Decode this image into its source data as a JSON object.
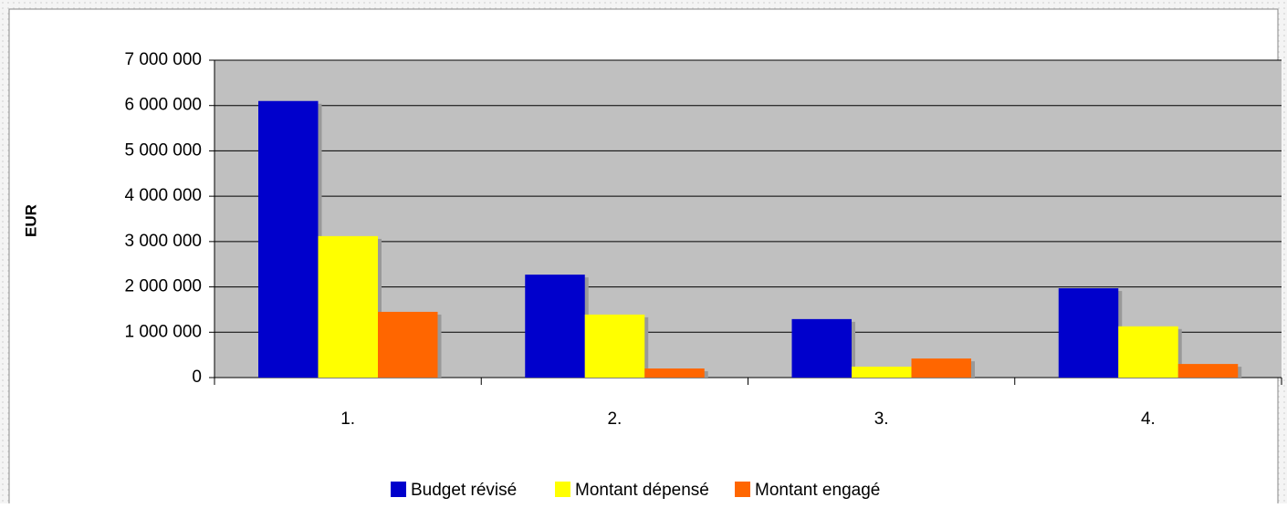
{
  "chart_data": {
    "type": "bar",
    "y_label": "EUR",
    "categories": [
      "1.",
      "2.",
      "3.",
      "4."
    ],
    "series": [
      {
        "name": "Budget révisé",
        "color": "#0000cc",
        "values": [
          6100000,
          2270000,
          1290000,
          1970000
        ]
      },
      {
        "name": "Montant dépensé",
        "color": "#ffff00",
        "values": [
          3120000,
          1390000,
          240000,
          1130000
        ]
      },
      {
        "name": "Montant engagé",
        "color": "#ff6600",
        "values": [
          1450000,
          200000,
          420000,
          300000
        ]
      }
    ],
    "ylim": [
      0,
      7000000
    ],
    "yticks": [
      0,
      {
        "value": 1000000,
        "label": "1 000 000"
      },
      {
        "value": 2000000,
        "label": "2 000 000"
      },
      {
        "value": 3000000,
        "label": "3 000 000"
      },
      {
        "value": 4000000,
        "label": "4 000 000"
      },
      {
        "value": 5000000,
        "label": "5 000 000"
      },
      {
        "value": 6000000,
        "label": "6 000 000"
      },
      {
        "value": 7000000,
        "label": "7 000 000"
      }
    ],
    "grid": true,
    "legend": "bottom"
  }
}
